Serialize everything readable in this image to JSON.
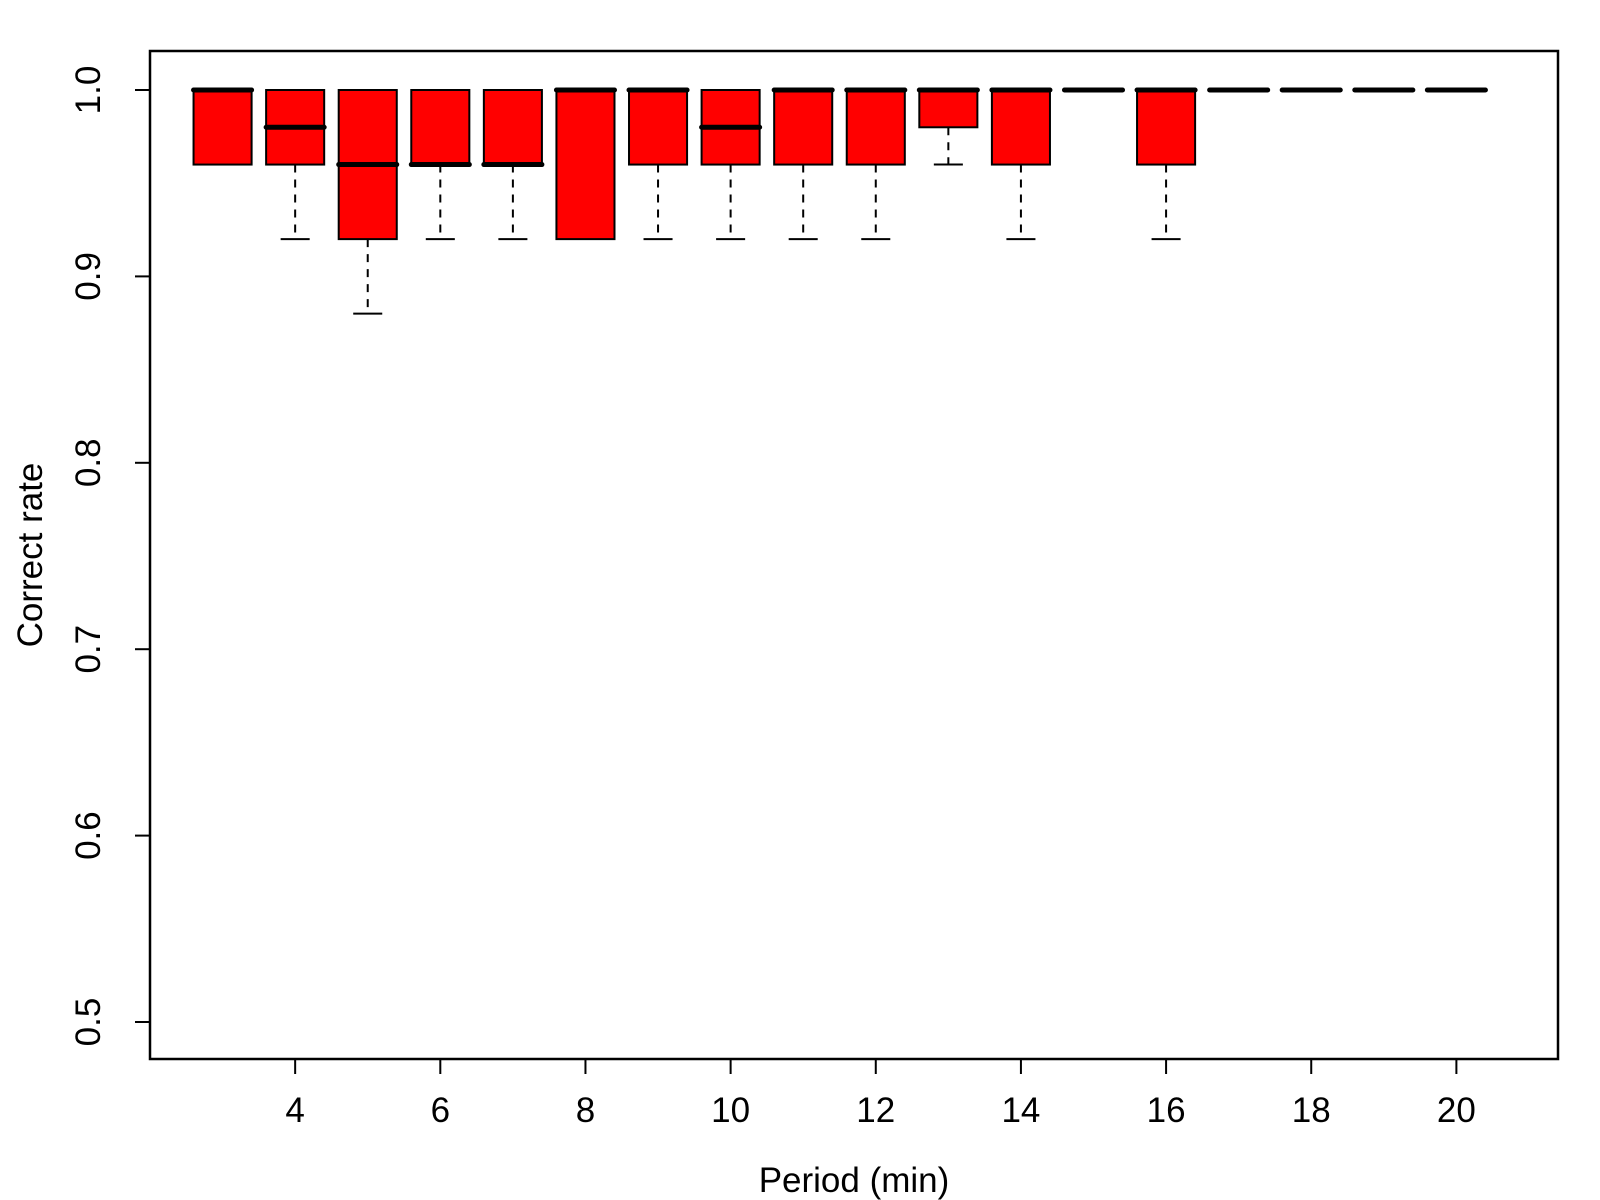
{
  "chart_data": {
    "type": "boxplot",
    "title": "",
    "xlabel": "Period (min)",
    "ylabel": "Correct rate",
    "ylim": [
      0.5,
      1.0
    ],
    "xlim": [
      2.0,
      21.4
    ],
    "x_ticks": [
      4,
      6,
      8,
      10,
      12,
      14,
      16,
      18,
      20
    ],
    "x_tick_labels": [
      "4",
      "6",
      "8",
      "10",
      "12",
      "14",
      "16",
      "18",
      "20"
    ],
    "y_ticks": [
      0.5,
      0.6,
      0.7,
      0.8,
      0.9,
      1.0
    ],
    "y_tick_labels": [
      "0.5",
      "0.6",
      "0.7",
      "0.8",
      "0.9",
      "1.0"
    ],
    "box_color": "#ff0000",
    "grid": false,
    "boxes": [
      {
        "period": 3,
        "min": 0.96,
        "q1": 0.96,
        "median": 1.0,
        "q3": 1.0,
        "max": 1.0
      },
      {
        "period": 4,
        "min": 0.92,
        "q1": 0.96,
        "median": 0.98,
        "q3": 1.0,
        "max": 1.0
      },
      {
        "period": 5,
        "min": 0.88,
        "q1": 0.92,
        "median": 0.96,
        "q3": 1.0,
        "max": 1.0
      },
      {
        "period": 6,
        "min": 0.92,
        "q1": 0.96,
        "median": 0.96,
        "q3": 1.0,
        "max": 1.0
      },
      {
        "period": 7,
        "min": 0.92,
        "q1": 0.96,
        "median": 0.96,
        "q3": 1.0,
        "max": 1.0
      },
      {
        "period": 8,
        "min": 0.92,
        "q1": 0.92,
        "median": 1.0,
        "q3": 1.0,
        "max": 1.0
      },
      {
        "period": 9,
        "min": 0.92,
        "q1": 0.96,
        "median": 1.0,
        "q3": 1.0,
        "max": 1.0
      },
      {
        "period": 10,
        "min": 0.92,
        "q1": 0.96,
        "median": 0.98,
        "q3": 1.0,
        "max": 1.0
      },
      {
        "period": 11,
        "min": 0.92,
        "q1": 0.96,
        "median": 1.0,
        "q3": 1.0,
        "max": 1.0
      },
      {
        "period": 12,
        "min": 0.92,
        "q1": 0.96,
        "median": 1.0,
        "q3": 1.0,
        "max": 1.0
      },
      {
        "period": 13,
        "min": 0.96,
        "q1": 0.98,
        "median": 1.0,
        "q3": 1.0,
        "max": 1.0
      },
      {
        "period": 14,
        "min": 0.92,
        "q1": 0.96,
        "median": 1.0,
        "q3": 1.0,
        "max": 1.0
      },
      {
        "period": 15,
        "min": 1.0,
        "q1": 1.0,
        "median": 1.0,
        "q3": 1.0,
        "max": 1.0
      },
      {
        "period": 16,
        "min": 0.92,
        "q1": 0.96,
        "median": 1.0,
        "q3": 1.0,
        "max": 1.0
      },
      {
        "period": 17,
        "min": 1.0,
        "q1": 1.0,
        "median": 1.0,
        "q3": 1.0,
        "max": 1.0
      },
      {
        "period": 18,
        "min": 1.0,
        "q1": 1.0,
        "median": 1.0,
        "q3": 1.0,
        "max": 1.0
      },
      {
        "period": 19,
        "min": 1.0,
        "q1": 1.0,
        "median": 1.0,
        "q3": 1.0,
        "max": 1.0
      },
      {
        "period": 20,
        "min": 1.0,
        "q1": 1.0,
        "median": 1.0,
        "q3": 1.0,
        "max": 1.0
      }
    ]
  }
}
